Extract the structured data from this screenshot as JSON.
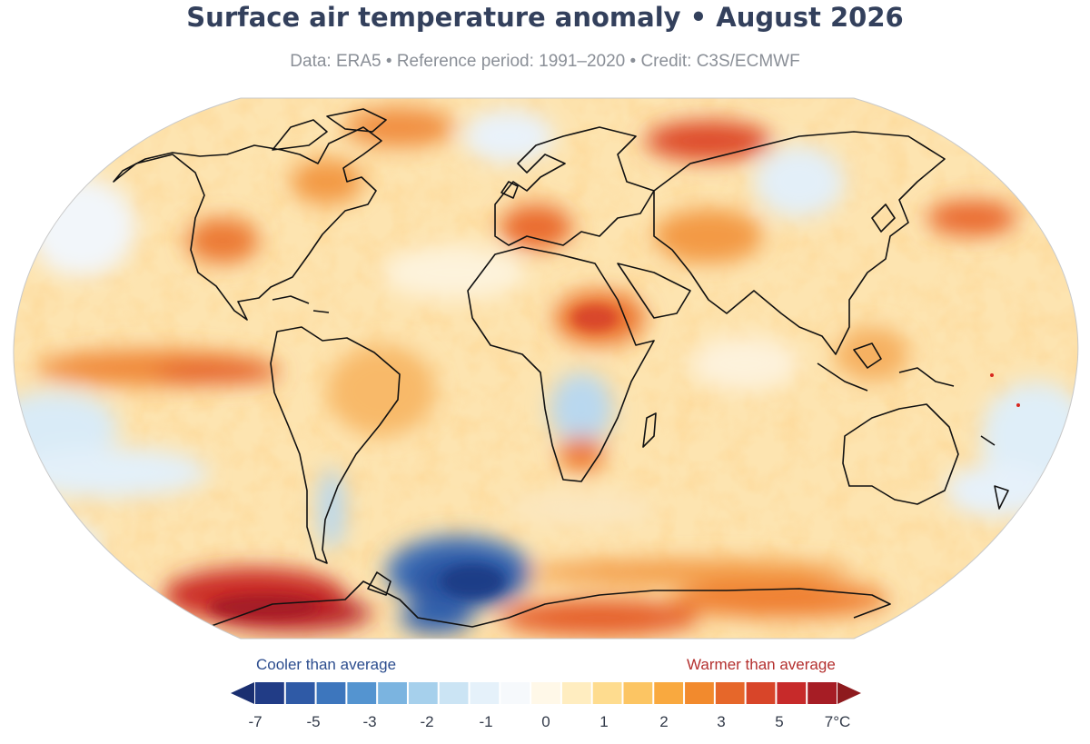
{
  "title": "Surface air temperature anomaly • August 2026",
  "subtitle": "Data: ERA5 • Reference period: 1991–2020 • Credit: C3S/ECMWF",
  "legend": {
    "cooler_label": "Cooler than average",
    "warmer_label": "Warmer than average",
    "ticks": [
      "-7",
      "-5",
      "-3",
      "-2",
      "-1",
      "0",
      "1",
      "2",
      "3",
      "5",
      "7°C"
    ],
    "colors": [
      "#213c86",
      "#2f5aa6",
      "#3d76bd",
      "#5494d0",
      "#7bb4e0",
      "#a6d0ec",
      "#cbe4f4",
      "#e5f1fa",
      "#f6f9fc",
      "#fff8e8",
      "#ffedc0",
      "#fedc8f",
      "#fcc563",
      "#f9a93f",
      "#f28a2d",
      "#e6672a",
      "#d84529",
      "#c72a2a",
      "#a61d25"
    ],
    "arrow_left_color": "#1a2f70",
    "arrow_right_color": "#8e1a1e"
  }
}
